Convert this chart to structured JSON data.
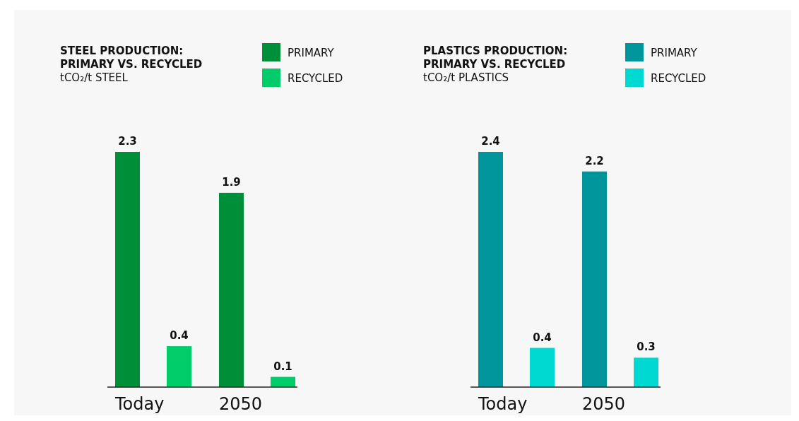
{
  "chart_data": [
    {
      "type": "bar",
      "title": "STEEL PRODUCTION:\nPRIMARY VS. RECYCLED",
      "subtitle": "tCO₂/t STEEL",
      "categories": [
        "Today",
        "2050"
      ],
      "series": [
        {
          "name": "PRIMARY",
          "color": "#008f39",
          "values": [
            2.3,
            1.9
          ]
        },
        {
          "name": "RECYCLED",
          "color": "#00cc6a",
          "values": [
            0.4,
            0.1
          ]
        }
      ],
      "data_labels": true,
      "legend": "top right",
      "tick_labels": "x"
    },
    {
      "type": "bar",
      "title": "PLASTICS PRODUCTION:\nPRIMARY VS. RECYCLED",
      "subtitle": "tCO₂/t PLASTICS",
      "categories": [
        "Today",
        "2050"
      ],
      "series": [
        {
          "name": "PRIMARY",
          "color": "#00959b",
          "values": [
            2.4,
            2.2
          ]
        },
        {
          "name": "RECYCLED",
          "color": "#00d9d2",
          "values": [
            0.4,
            0.3
          ]
        }
      ],
      "data_labels": true,
      "legend": "top right",
      "tick_labels": "x"
    }
  ]
}
